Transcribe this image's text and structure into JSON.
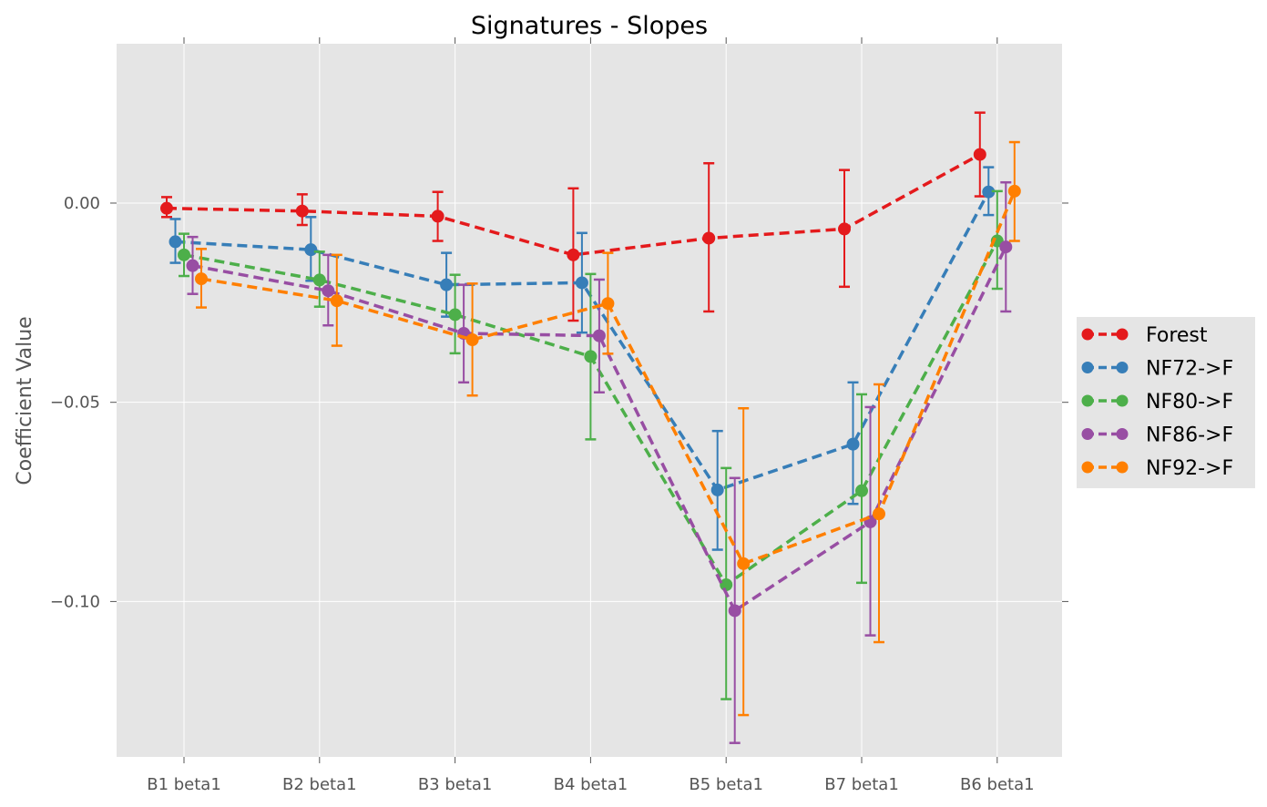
{
  "chart_data": {
    "type": "line",
    "title": "Signatures - Slopes",
    "xlabel": "",
    "ylabel": "Coefficient Value",
    "categories": [
      "B1 beta1",
      "B2 beta1",
      "B3 beta1",
      "B4 beta1",
      "B5 beta1",
      "B7 beta1",
      "B6 beta1"
    ],
    "ylim": [
      -0.139,
      0.04
    ],
    "yticks": [
      0.0,
      -0.05,
      -0.1
    ],
    "ytick_labels": [
      "0.00",
      "−0.05",
      "−0.10"
    ],
    "grid": true,
    "legend_position": "right",
    "series": [
      {
        "name": "Forest",
        "color": "#e41a1c",
        "values": [
          -0.0013,
          -0.002,
          -0.0033,
          -0.013,
          -0.0088,
          -0.0065,
          0.0122
        ],
        "err_low": [
          -0.0035,
          -0.0055,
          -0.0095,
          -0.0295,
          -0.0272,
          -0.021,
          0.0017
        ],
        "err_high": [
          0.0015,
          0.0022,
          0.0028,
          0.0037,
          0.01,
          0.0083,
          0.0227
        ]
      },
      {
        "name": "NF72->F",
        "color": "#377eb8",
        "values": [
          -0.0097,
          -0.0117,
          -0.0205,
          -0.02,
          -0.072,
          -0.0605,
          0.0028
        ],
        "err_low": [
          -0.015,
          -0.0195,
          -0.0285,
          -0.0325,
          -0.087,
          -0.0755,
          -0.003
        ],
        "err_high": [
          -0.004,
          -0.0035,
          -0.0125,
          -0.0075,
          -0.0572,
          -0.045,
          0.009
        ]
      },
      {
        "name": "NF80->F",
        "color": "#4daf4a",
        "values": [
          -0.013,
          -0.0193,
          -0.028,
          -0.0385,
          -0.0958,
          -0.0722,
          -0.0095
        ],
        "err_low": [
          -0.0183,
          -0.026,
          -0.0377,
          -0.0593,
          -0.1245,
          -0.0953,
          -0.0215
        ],
        "err_high": [
          -0.0077,
          -0.0122,
          -0.018,
          -0.0178,
          -0.0665,
          -0.048,
          0.003
        ]
      },
      {
        "name": "NF86->F",
        "color": "#984ea3",
        "values": [
          -0.0157,
          -0.022,
          -0.0327,
          -0.0333,
          -0.1023,
          -0.08,
          -0.011
        ],
        "err_low": [
          -0.0228,
          -0.0307,
          -0.045,
          -0.0475,
          -0.1355,
          -0.1085,
          -0.0272
        ],
        "err_high": [
          -0.0085,
          -0.013,
          -0.0205,
          -0.0192,
          -0.069,
          -0.0512,
          0.0052
        ]
      },
      {
        "name": "NF92->F",
        "color": "#ff7f00",
        "values": [
          -0.019,
          -0.0245,
          -0.0343,
          -0.0252,
          -0.0905,
          -0.078,
          0.003
        ],
        "err_low": [
          -0.0262,
          -0.0358,
          -0.0483,
          -0.0378,
          -0.1285,
          -0.1102,
          -0.0095
        ],
        "err_high": [
          -0.0115,
          -0.013,
          -0.0202,
          -0.0125,
          -0.0515,
          -0.0455,
          0.0153
        ]
      }
    ]
  }
}
